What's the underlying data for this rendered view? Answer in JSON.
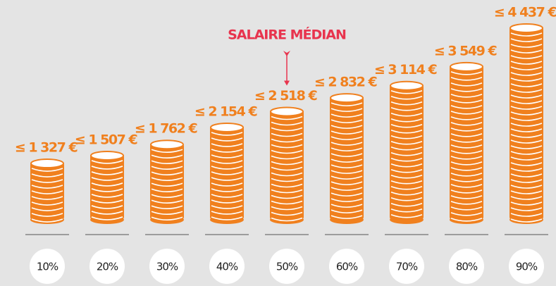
{
  "chart_data": {
    "type": "coins",
    "categories": [
      "10%",
      "20%",
      "30%",
      "40%",
      "50%",
      "60%",
      "70%",
      "80%",
      "90%"
    ],
    "values": [
      1327,
      1507,
      1762,
      2154,
      2518,
      2832,
      3114,
      3549,
      4437
    ],
    "value_labels": [
      "≤ 1 327 €",
      "≤ 1 507 €",
      "≤ 1 762 €",
      "≤ 2 154 €",
      "≤ 2 518 €",
      "≤ 2 832 €",
      "≤ 3 114 €",
      "≤ 3 549 €",
      "≤ 4 437 €"
    ],
    "color": "#f0801e",
    "annotation": {
      "text": "SALAIRE MÉDIAN",
      "category": "50%",
      "color": "#e8344e"
    }
  }
}
